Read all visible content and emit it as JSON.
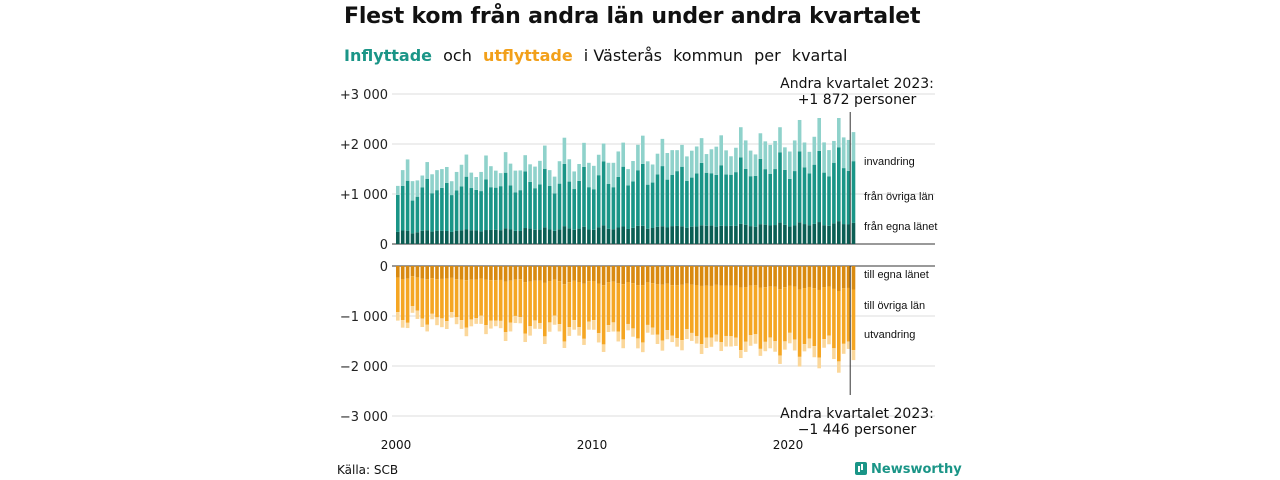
{
  "header": {
    "title": "Flest kom från andra län under andra kvartalet",
    "subtitle_parts": [
      "Inflyttade",
      "och",
      "utflyttade",
      "i Västerås",
      "kommun",
      "per",
      "kvartal"
    ]
  },
  "footer": {
    "source": "Källa: SCB",
    "brand": "Newsworthy"
  },
  "colors": {
    "in_own": "#0b5e54",
    "in_other": "#1a9587",
    "in_abroad": "#8fd2cb",
    "out_own": "#d98a10",
    "out_other": "#f5a623",
    "out_abroad": "#fbd79a",
    "grid": "#dddddd"
  },
  "chart_data": {
    "type": "bar",
    "stacked": true,
    "x_start_year": 2000,
    "quarters_per_year": 4,
    "num_quarters": 94,
    "x_ticks": [
      {
        "label": "2000",
        "index": 0
      },
      {
        "label": "2010",
        "index": 40
      },
      {
        "label": "2020",
        "index": 80
      }
    ],
    "y_ticks_top": [
      {
        "label": "+3 000",
        "value": 3000
      },
      {
        "label": "+2 000",
        "value": 2000
      },
      {
        "label": "+1 000",
        "value": 1000
      },
      {
        "label": "0",
        "value": 0
      }
    ],
    "y_ticks_bottom": [
      {
        "label": "0",
        "value": 0
      },
      {
        "label": "−1 000",
        "value": -1000
      },
      {
        "label": "−2 000",
        "value": -2000
      },
      {
        "label": "−3 000",
        "value": -3000
      }
    ],
    "ylim_top": [
      0,
      3000
    ],
    "ylim_bottom": [
      -3000,
      0
    ],
    "series_in": [
      {
        "name": "från egna länet",
        "key": "own"
      },
      {
        "name": "från övriga län",
        "key": "other"
      },
      {
        "name": "invandring",
        "key": "abroad"
      }
    ],
    "series_out": [
      {
        "name": "till egna länet",
        "key": "own"
      },
      {
        "name": "till övriga län",
        "key": "other"
      },
      {
        "name": "utvandring",
        "key": "abroad"
      }
    ],
    "annotation_top": {
      "line1": "Andra kvartalet 2023:",
      "line2": "+1 872 personer"
    },
    "annotation_bottom": {
      "line1": "Andra kvartalet 2023:",
      "line2": "−1 446 personer"
    },
    "highlight_index": 93
  }
}
